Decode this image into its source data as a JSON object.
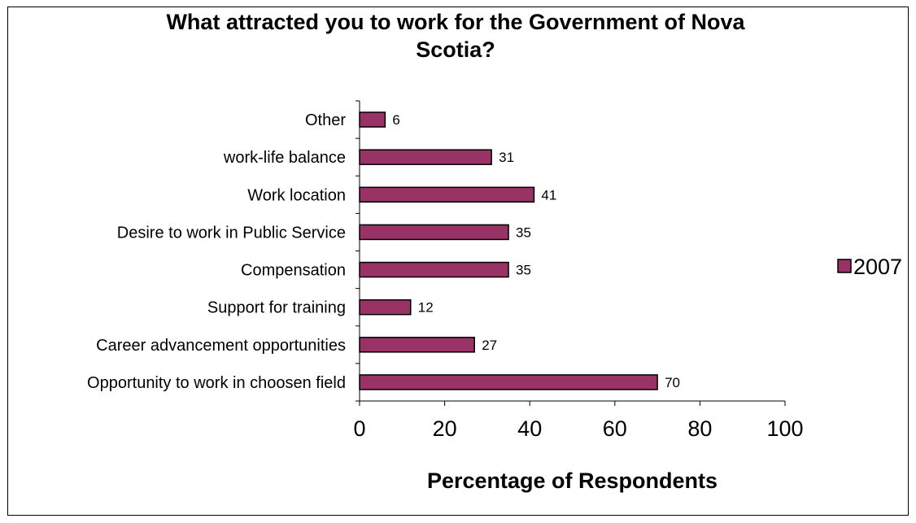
{
  "chart_data": {
    "type": "bar",
    "orientation": "horizontal",
    "title": "What attracted you to work for the Government of Nova\nScotia?",
    "xlabel": "Percentage of Respondents",
    "ylabel": "",
    "xlim": [
      0,
      100
    ],
    "xticks": [
      "0",
      "20",
      "40",
      "60",
      "80",
      "100"
    ],
    "categories": [
      "Opportunity to work in choosen field",
      "Career advancement opportunities",
      "Support for training",
      "Compensation",
      "Desire to work in Public Service",
      "Work location",
      "work-life balance",
      "Other"
    ],
    "series": [
      {
        "name": "2007",
        "values": [
          70,
          27,
          12,
          35,
          35,
          41,
          31,
          6
        ],
        "color": "#993366"
      }
    ],
    "data_labels": true,
    "legend_position": "right",
    "grid": false
  }
}
